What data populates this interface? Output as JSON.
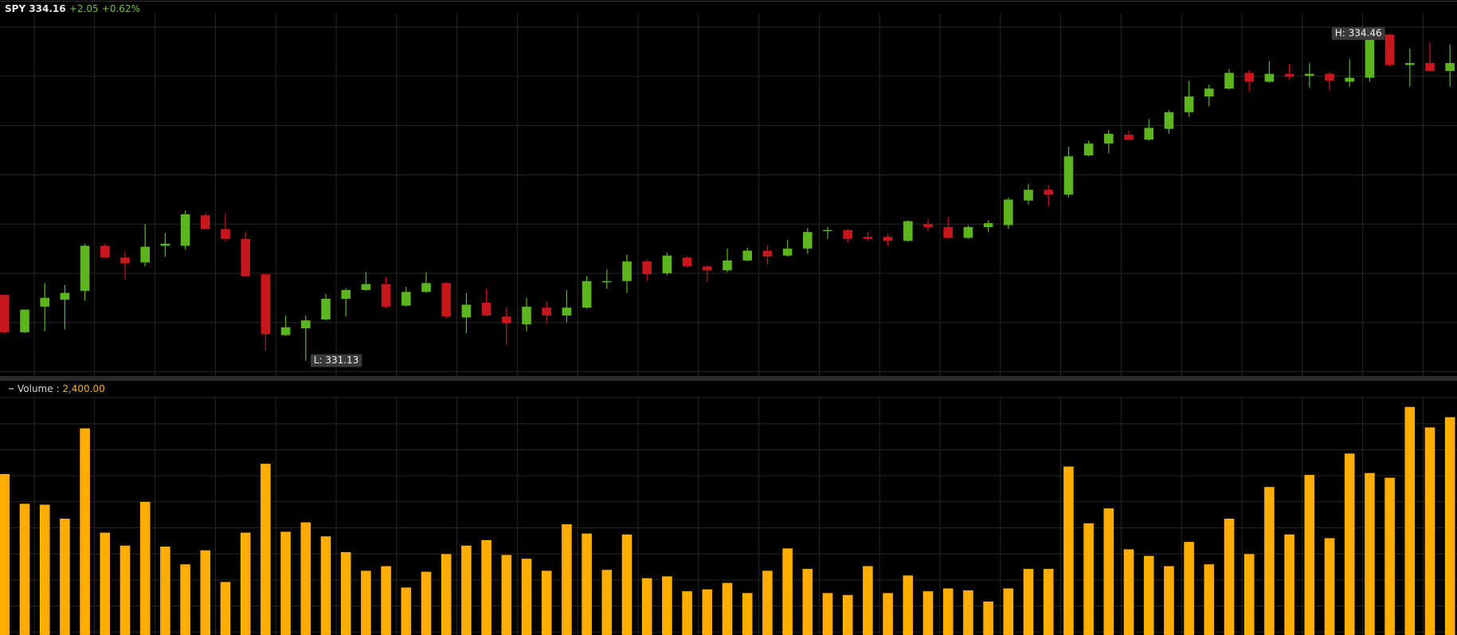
{
  "chart_data": {
    "type": "candlestick",
    "symbol": "SPY",
    "last": 334.16,
    "change": {
      "value": 2.05,
      "label": "+2.05"
    },
    "change_pct": {
      "value": 0.62,
      "label": "+0.62%"
    },
    "up_color": "#5cb51f",
    "down_color": "#c8161d",
    "ylim": [
      330.97,
      334.66
    ],
    "open": [
      331.8,
      331.42,
      331.68,
      331.75,
      331.84,
      332.3,
      332.18,
      332.13,
      332.3,
      332.3,
      332.61,
      332.47,
      332.37,
      332.01,
      331.39,
      331.46,
      331.55,
      331.76,
      331.85,
      331.91,
      331.69,
      331.83,
      331.92,
      331.57,
      331.72,
      331.58,
      331.5,
      331.67,
      331.59,
      331.67,
      331.93,
      331.94,
      332.14,
      332.02,
      332.18,
      332.09,
      332.05,
      332.15,
      332.25,
      332.2,
      332.27,
      332.45,
      332.46,
      332.39,
      332.39,
      332.35,
      332.52,
      332.49,
      332.38,
      332.49,
      332.51,
      332.76,
      332.87,
      332.82,
      333.22,
      333.34,
      333.43,
      333.38,
      333.49,
      333.66,
      333.82,
      333.9,
      334.06,
      333.97,
      334.05,
      334.03,
      334.05,
      333.97,
      334.01,
      334.45,
      334.14,
      334.16,
      334.08
    ],
    "high": [
      331.8,
      331.65,
      331.92,
      331.9,
      332.32,
      332.32,
      332.24,
      332.52,
      332.43,
      332.66,
      332.63,
      332.63,
      332.44,
      332.01,
      331.59,
      331.59,
      331.81,
      331.87,
      332.03,
      331.98,
      331.88,
      332.03,
      331.93,
      331.82,
      331.86,
      331.67,
      331.77,
      331.73,
      331.85,
      331.99,
      332.06,
      332.21,
      332.16,
      332.23,
      332.19,
      332.1,
      332.27,
      332.28,
      332.3,
      332.36,
      332.48,
      332.49,
      332.47,
      332.44,
      332.42,
      332.56,
      332.57,
      332.59,
      332.51,
      332.56,
      332.79,
      332.93,
      332.92,
      333.31,
      333.37,
      333.48,
      333.47,
      333.59,
      333.68,
      333.98,
      333.94,
      334.1,
      334.09,
      334.18,
      334.15,
      334.16,
      334.07,
      334.2,
      334.45,
      334.46,
      334.31,
      334.37,
      334.35
    ],
    "low": [
      331.4,
      331.41,
      331.43,
      331.45,
      331.74,
      332.17,
      331.96,
      332.09,
      332.19,
      332.26,
      332.47,
      332.34,
      331.98,
      331.23,
      331.38,
      331.13,
      331.54,
      331.58,
      331.84,
      331.66,
      331.68,
      331.82,
      331.56,
      331.41,
      331.58,
      331.29,
      331.43,
      331.51,
      331.52,
      331.66,
      331.86,
      331.82,
      331.94,
      332.0,
      332.08,
      331.93,
      332.03,
      332.14,
      332.11,
      332.19,
      332.22,
      332.37,
      332.33,
      332.35,
      332.3,
      332.34,
      332.45,
      332.37,
      332.37,
      332.44,
      332.47,
      332.72,
      332.7,
      332.79,
      333.21,
      333.24,
      333.37,
      333.37,
      333.44,
      333.61,
      333.72,
      333.89,
      333.87,
      333.96,
      333.99,
      333.91,
      333.88,
      333.92,
      333.97,
      334.13,
      333.92,
      334.08,
      333.92
    ],
    "close": [
      331.42,
      331.65,
      331.77,
      331.82,
      332.3,
      332.18,
      332.12,
      332.29,
      332.32,
      332.62,
      332.47,
      332.37,
      331.99,
      331.4,
      331.47,
      331.54,
      331.76,
      331.85,
      331.91,
      331.68,
      331.83,
      331.92,
      331.58,
      331.7,
      331.59,
      331.51,
      331.68,
      331.59,
      331.67,
      331.94,
      331.94,
      332.14,
      332.01,
      332.2,
      332.09,
      332.05,
      332.15,
      332.25,
      332.19,
      332.27,
      332.44,
      332.46,
      332.37,
      332.37,
      332.35,
      332.55,
      332.49,
      332.38,
      332.49,
      332.53,
      332.77,
      332.87,
      332.82,
      333.21,
      333.34,
      333.44,
      333.38,
      333.5,
      333.66,
      333.82,
      333.9,
      334.06,
      333.97,
      334.05,
      334.02,
      334.05,
      333.98,
      334.01,
      334.42,
      334.14,
      334.16,
      334.08,
      334.16
    ],
    "annotations": [
      {
        "label": "H: 334.46",
        "value": 334.46
      },
      {
        "label": "L: 331.13",
        "value": 331.13
      }
    ],
    "volume": {
      "title": "Volume :",
      "readout": {
        "value": 2400,
        "label": "2,400.00"
      },
      "color": "#ffad00",
      "ylim": [
        0,
        2625
      ],
      "values": [
        1774,
        1446,
        1436,
        1282,
        2277,
        1128,
        985,
        1467,
        974,
        779,
        933,
        585,
        1128,
        1887,
        1138,
        1241,
        1087,
        913,
        708,
        759,
        523,
        697,
        892,
        985,
        1046,
        882,
        841,
        708,
        1220,
        1118,
        718,
        1108,
        626,
        646,
        482,
        503,
        574,
        462,
        708,
        954,
        728,
        462,
        441,
        759,
        462,
        656,
        482,
        513,
        492,
        369,
        513,
        728,
        728,
        1856,
        1231,
        1395,
        944,
        872,
        759,
        1026,
        779,
        1282,
        892,
        1631,
        1108,
        1764,
        1067,
        2000,
        1785,
        1733,
        2513,
        2287,
        2400
      ]
    }
  }
}
